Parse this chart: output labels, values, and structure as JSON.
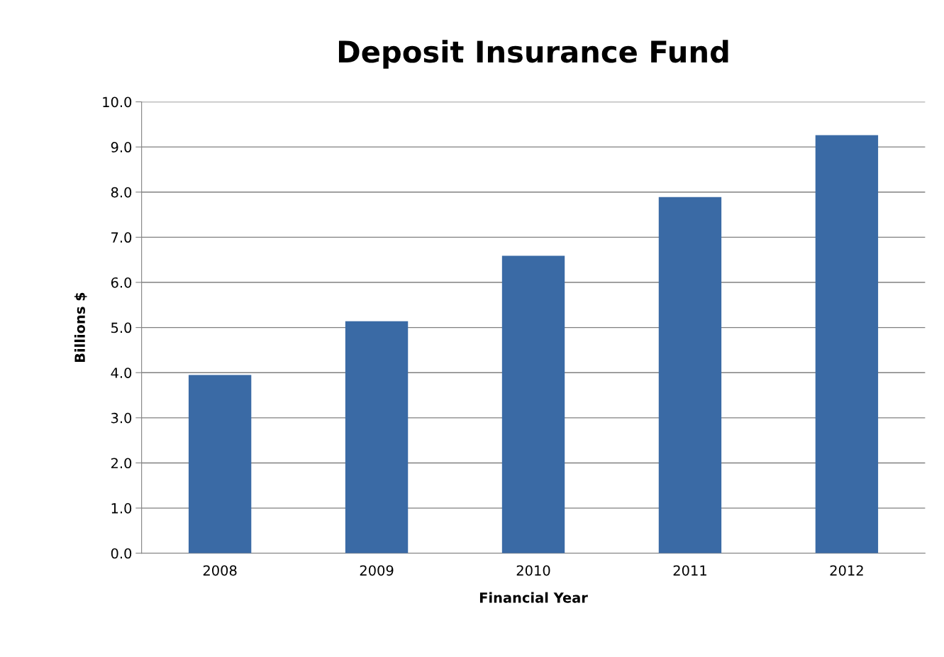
{
  "chart_data": {
    "type": "bar",
    "title": "Deposit Insurance Fund",
    "xlabel": "Financial Year",
    "ylabel": "Billions $",
    "categories": [
      "2008",
      "2009",
      "2010",
      "2011",
      "2012"
    ],
    "values": [
      3.95,
      5.14,
      6.59,
      7.89,
      9.26
    ],
    "color": "#3a6aa5",
    "ylim": [
      0,
      10
    ],
    "yticks": [
      {
        "value": 0,
        "label": "0.0"
      },
      {
        "value": 1,
        "label": "1.0"
      },
      {
        "value": 2,
        "label": "2.0"
      },
      {
        "value": 3,
        "label": "3.0"
      },
      {
        "value": 4,
        "label": "4.0"
      },
      {
        "value": 5,
        "label": "5.0"
      },
      {
        "value": 6,
        "label": "6.0"
      },
      {
        "value": 7,
        "label": "7.0"
      },
      {
        "value": 8,
        "label": "8.0"
      },
      {
        "value": 9,
        "label": "9.0"
      },
      {
        "value": 10,
        "label": "10.0"
      }
    ],
    "grid": "y"
  }
}
